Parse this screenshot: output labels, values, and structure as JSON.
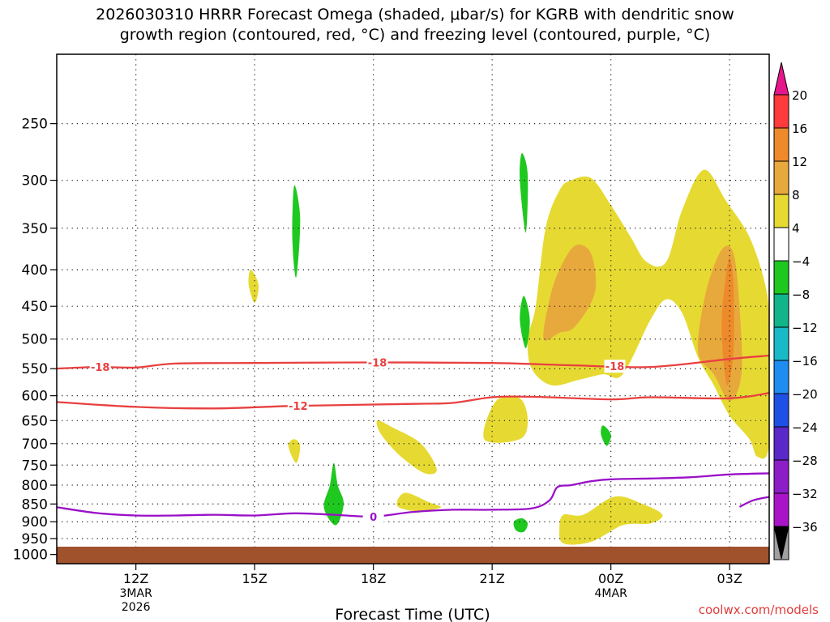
{
  "title": {
    "line1": "2026030310 HRRR Forecast Omega (shaded, μbar/s) for KGRB with dendritic snow",
    "line2": "growth region (contoured, red, °C) and freezing level (contoured, purple, °C)"
  },
  "footer": "coolwx.com/models",
  "chart_data": {
    "type": "area",
    "title": "2026030310 HRRR Forecast Omega (shaded, μbar/s) for KGRB with dendritic snow growth region (contoured, red, °C) and freezing level (contoured, purple, °C)",
    "xlabel": "Forecast Time (UTC)",
    "ylabel": "",
    "x_unit": "hours since 2026-03-03 10Z",
    "xlim": [
      0,
      18
    ],
    "ylim": [
      1030,
      200
    ],
    "y_scale": "log",
    "x_ticks": [
      {
        "x": 2,
        "label": "12Z",
        "sub": [
          "3MAR",
          "2026"
        ]
      },
      {
        "x": 5,
        "label": "15Z",
        "sub": []
      },
      {
        "x": 8,
        "label": "18Z",
        "sub": []
      },
      {
        "x": 11,
        "label": "21Z",
        "sub": []
      },
      {
        "x": 14,
        "label": "00Z",
        "sub": [
          "4MAR"
        ]
      },
      {
        "x": 17,
        "label": "03Z",
        "sub": []
      }
    ],
    "y_ticks": [
      250,
      300,
      350,
      400,
      450,
      500,
      550,
      600,
      650,
      700,
      750,
      800,
      850,
      900,
      950,
      1000
    ],
    "grid": true,
    "colorbar": {
      "ticks": [
        20,
        16,
        12,
        8,
        4,
        -4,
        -8,
        -12,
        -16,
        -20,
        -24,
        -28,
        -32,
        -36
      ],
      "colors": [
        "#ff3b3b",
        "#ee8a2a",
        "#e8a93c",
        "#e6da32",
        "#ffffff",
        "#1fc81f",
        "#12b48a",
        "#1ab9c8",
        "#1e8cf0",
        "#1e50e6",
        "#5a28c8",
        "#8c1ec8",
        "#aa14c8",
        "#a0a0a0"
      ],
      "top_triangle": "#e6168c",
      "bottom_triangle": "#000000"
    },
    "contours": [
      {
        "kind": "dgz",
        "label": "-18",
        "color": "#e84040",
        "points": [
          [
            -0.05,
            550
          ],
          [
            1,
            547
          ],
          [
            2,
            548
          ],
          [
            3,
            541
          ],
          [
            5,
            540
          ],
          [
            8,
            539
          ],
          [
            11,
            540
          ],
          [
            13,
            544
          ],
          [
            15,
            547
          ],
          [
            17,
            533
          ],
          [
            18.05,
            527
          ]
        ],
        "label_x": [
          1.1,
          8.1,
          14.1
        ]
      },
      {
        "kind": "dgz",
        "label": "-12",
        "color": "#e84040",
        "points": [
          [
            -0.05,
            612
          ],
          [
            2,
            622
          ],
          [
            4,
            625
          ],
          [
            6,
            620
          ],
          [
            9,
            616
          ],
          [
            10,
            614
          ],
          [
            11,
            603
          ],
          [
            12,
            602
          ],
          [
            14,
            607
          ],
          [
            15,
            603
          ],
          [
            17,
            605
          ],
          [
            18.05,
            594
          ]
        ],
        "label_x": [
          6.1
        ]
      },
      {
        "kind": "freezing",
        "label": "0",
        "color": "#9a10c8",
        "points": [
          [
            -0.05,
            858
          ],
          [
            1,
            875
          ],
          [
            2,
            882
          ],
          [
            3,
            882
          ],
          [
            4,
            880
          ],
          [
            5,
            882
          ],
          [
            6,
            876
          ],
          [
            7,
            880
          ],
          [
            8,
            885
          ],
          [
            9,
            872
          ],
          [
            10,
            866
          ],
          [
            11,
            866
          ],
          [
            12,
            862
          ],
          [
            12.45,
            840
          ],
          [
            12.65,
            805
          ],
          [
            13,
            800
          ],
          [
            13.5,
            790
          ],
          [
            14,
            785
          ],
          [
            15,
            783
          ],
          [
            16,
            780
          ],
          [
            17,
            773
          ],
          [
            18.05,
            770
          ]
        ],
        "label_x": [
          8
        ]
      },
      {
        "kind": "freezing",
        "label": "",
        "color": "#9a10c8",
        "points": [
          [
            17.25,
            858
          ],
          [
            17.6,
            840
          ],
          [
            18.05,
            830
          ]
        ],
        "label_x": []
      }
    ],
    "shaded_regions": [
      {
        "value": 5,
        "color": "#e6da32",
        "points": [
          [
            12.1,
            450
          ],
          [
            12.35,
            350
          ],
          [
            12.7,
            310
          ],
          [
            13,
            300
          ],
          [
            13.5,
            298
          ],
          [
            14,
            325
          ],
          [
            14.5,
            360
          ],
          [
            14.9,
            390
          ],
          [
            15.4,
            390
          ],
          [
            15.8,
            330
          ],
          [
            16.35,
            290
          ],
          [
            16.9,
            320
          ],
          [
            17.5,
            360
          ],
          [
            17.9,
            420
          ],
          [
            18,
            480
          ],
          [
            18,
            700
          ],
          [
            17.7,
            730
          ],
          [
            17.5,
            690
          ],
          [
            17,
            640
          ],
          [
            16.6,
            580
          ],
          [
            16.2,
            530
          ],
          [
            15.8,
            460
          ],
          [
            15.4,
            440
          ],
          [
            15,
            470
          ],
          [
            14.3,
            560
          ],
          [
            13.8,
            560
          ],
          [
            13.2,
            570
          ],
          [
            12.5,
            580
          ],
          [
            12.0,
            550
          ],
          [
            11.9,
            500
          ]
        ]
      },
      {
        "value": 9,
        "color": "#e8a93c",
        "points": [
          [
            12.3,
            500
          ],
          [
            12.45,
            440
          ],
          [
            12.7,
            400
          ],
          [
            13.1,
            370
          ],
          [
            13.5,
            380
          ],
          [
            13.6,
            430
          ],
          [
            13.1,
            480
          ],
          [
            12.7,
            490
          ]
        ]
      },
      {
        "value": 9,
        "color": "#e8a93c",
        "points": [
          [
            16.2,
            520
          ],
          [
            16.4,
            430
          ],
          [
            16.8,
            375
          ],
          [
            17.1,
            380
          ],
          [
            17.25,
            450
          ],
          [
            17.3,
            560
          ],
          [
            17.0,
            610
          ],
          [
            16.6,
            560
          ]
        ]
      },
      {
        "value": 13,
        "color": "#ee8a2a",
        "points": [
          [
            16.8,
            470
          ],
          [
            16.9,
            410
          ],
          [
            17.0,
            385
          ],
          [
            17.1,
            420
          ],
          [
            17.1,
            520
          ],
          [
            16.95,
            580
          ],
          [
            16.85,
            540
          ]
        ]
      },
      {
        "value": 5,
        "color": "#e6da32",
        "points": [
          [
            11.7,
            605
          ],
          [
            11.1,
            610
          ],
          [
            10.8,
            690
          ],
          [
            11.7,
            690
          ],
          [
            11.9,
            650
          ]
        ]
      },
      {
        "value": 5,
        "color": "#e6da32",
        "points": [
          [
            8.1,
            650
          ],
          [
            8.5,
            665
          ],
          [
            9.2,
            700
          ],
          [
            9.6,
            760
          ],
          [
            9.3,
            770
          ],
          [
            8.7,
            730
          ],
          [
            8.2,
            680
          ]
        ]
      },
      {
        "value": 5,
        "color": "#e6da32",
        "points": [
          [
            8.8,
            820
          ],
          [
            9.4,
            845
          ],
          [
            9.7,
            860
          ],
          [
            9.1,
            870
          ],
          [
            8.6,
            855
          ]
        ]
      },
      {
        "value": 5,
        "color": "#e6da32",
        "points": [
          [
            12.8,
            880
          ],
          [
            13.3,
            880
          ],
          [
            14.1,
            830
          ],
          [
            14.8,
            850
          ],
          [
            15.3,
            880
          ],
          [
            15.0,
            905
          ],
          [
            14.3,
            910
          ],
          [
            13.5,
            960
          ],
          [
            12.8,
            965
          ],
          [
            12.7,
            920
          ]
        ]
      },
      {
        "value": 5,
        "color": "#e6da32",
        "points": [
          [
            4.9,
            400
          ],
          [
            5.1,
            420
          ],
          [
            5.0,
            445
          ],
          [
            4.85,
            420
          ]
        ]
      },
      {
        "value": 5,
        "color": "#e6da32",
        "points": [
          [
            6.0,
            690
          ],
          [
            6.15,
            705
          ],
          [
            6.05,
            745
          ],
          [
            5.85,
            705
          ]
        ]
      },
      {
        "value": -6,
        "color": "#1fc81f",
        "points": [
          [
            6.0,
            305
          ],
          [
            6.15,
            340
          ],
          [
            6.05,
            410
          ],
          [
            5.95,
            360
          ]
        ]
      },
      {
        "value": -6,
        "color": "#1fc81f",
        "points": [
          [
            11.75,
            275
          ],
          [
            11.9,
            295
          ],
          [
            11.85,
            355
          ],
          [
            11.7,
            300
          ]
        ]
      },
      {
        "value": -6,
        "color": "#1fc81f",
        "points": [
          [
            11.8,
            435
          ],
          [
            11.95,
            470
          ],
          [
            11.85,
            515
          ],
          [
            11.7,
            470
          ]
        ]
      },
      {
        "value": -6,
        "color": "#1fc81f",
        "points": [
          [
            7.0,
            745
          ],
          [
            7.1,
            800
          ],
          [
            7.25,
            850
          ],
          [
            7.05,
            910
          ],
          [
            6.75,
            860
          ],
          [
            6.9,
            800
          ]
        ]
      },
      {
        "value": -6,
        "color": "#1fc81f",
        "points": [
          [
            11.55,
            900
          ],
          [
            11.75,
            890
          ],
          [
            11.9,
            905
          ],
          [
            11.8,
            930
          ],
          [
            11.6,
            925
          ]
        ]
      },
      {
        "value": -6,
        "color": "#1fc81f",
        "points": [
          [
            13.8,
            660
          ],
          [
            14.0,
            680
          ],
          [
            13.9,
            705
          ],
          [
            13.75,
            680
          ]
        ]
      }
    ]
  }
}
